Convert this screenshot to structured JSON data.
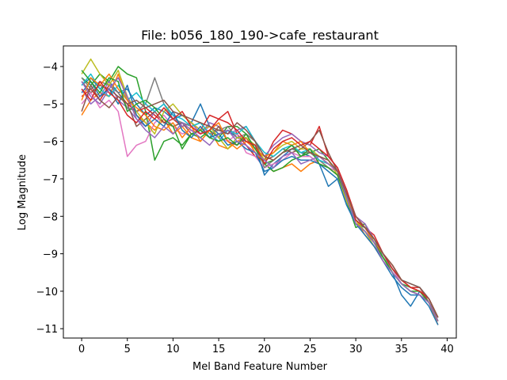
{
  "chart_data": {
    "type": "line",
    "title": "File: b056_180_190->cafe_restaurant",
    "xlabel": "Mel Band Feature Number",
    "ylabel": "Log Magnitude",
    "xlim": [
      -2,
      41
    ],
    "ylim": [
      -11.25,
      -3.45
    ],
    "xticks": [
      0,
      5,
      10,
      15,
      20,
      25,
      30,
      35,
      40
    ],
    "yticks": [
      -11,
      -10,
      -9,
      -8,
      -7,
      -6,
      -5,
      -4
    ],
    "grid": false,
    "legend": "none",
    "colors": [
      "#1f77b4",
      "#ff7f0e",
      "#2ca02c",
      "#d62728",
      "#9467bd",
      "#8c564b",
      "#e377c2",
      "#7f7f7f",
      "#bcbd22",
      "#17becf"
    ],
    "series": [
      {
        "values": [
          -4.5,
          -4.3,
          -4.6,
          -4.4,
          -4.7,
          -4.6,
          -5.0,
          -5.3,
          -5.1,
          -5.2,
          -5.4,
          -5.3,
          -5.5,
          -5.0,
          -5.6,
          -5.8,
          -5.7,
          -5.9,
          -6.0,
          -6.1,
          -6.9,
          -6.6,
          -6.4,
          -6.2,
          -6.3,
          -6.4,
          -6.6,
          -7.2,
          -7.0,
          -7.7,
          -8.2,
          -8.3,
          -8.6,
          -9.1,
          -9.5,
          -10.1,
          -10.4,
          -10.0,
          -10.3,
          -10.8
        ]
      },
      {
        "values": [
          -5.3,
          -4.9,
          -4.7,
          -4.8,
          -4.2,
          -4.9,
          -5.3,
          -5.5,
          -5.7,
          -5.4,
          -5.8,
          -5.6,
          -5.9,
          -6.0,
          -5.7,
          -6.1,
          -6.2,
          -6.0,
          -5.9,
          -6.3,
          -6.6,
          -6.8,
          -6.7,
          -6.6,
          -6.8,
          -6.6,
          -6.5,
          -6.7,
          -6.9,
          -7.6,
          -8.1,
          -8.5,
          -8.8,
          -9.2,
          -9.5,
          -9.8,
          -10.0,
          -10.1,
          -10.3,
          -10.9
        ]
      },
      {
        "values": [
          -4.3,
          -4.5,
          -4.2,
          -4.4,
          -4.0,
          -4.2,
          -4.3,
          -5.2,
          -6.5,
          -6.0,
          -5.9,
          -6.1,
          -5.8,
          -5.9,
          -5.7,
          -5.9,
          -5.6,
          -5.6,
          -5.8,
          -6.0,
          -6.6,
          -6.8,
          -6.7,
          -6.5,
          -6.4,
          -6.3,
          -6.2,
          -6.5,
          -6.8,
          -7.6,
          -8.3,
          -8.2,
          -8.7,
          -9.1,
          -9.5,
          -9.8,
          -9.9,
          -10.0,
          -10.3,
          -10.7
        ]
      },
      {
        "values": [
          -4.8,
          -4.6,
          -4.9,
          -4.5,
          -4.7,
          -5.0,
          -5.2,
          -5.1,
          -5.3,
          -5.5,
          -5.4,
          -5.6,
          -5.5,
          -5.7,
          -5.3,
          -5.4,
          -5.2,
          -5.8,
          -6.1,
          -6.4,
          -6.5,
          -6.0,
          -5.7,
          -5.8,
          -6.0,
          -6.1,
          -5.6,
          -6.4,
          -6.7,
          -7.3,
          -8.0,
          -8.3,
          -8.5,
          -9.0,
          -9.4,
          -9.7,
          -9.9,
          -9.9,
          -10.3,
          -10.8
        ]
      },
      {
        "values": [
          -4.6,
          -5.0,
          -4.8,
          -4.4,
          -4.9,
          -5.1,
          -5.4,
          -5.6,
          -5.2,
          -5.0,
          -5.3,
          -5.6,
          -5.5,
          -5.8,
          -5.5,
          -5.6,
          -5.8,
          -5.7,
          -5.6,
          -6.0,
          -6.4,
          -6.1,
          -5.9,
          -5.8,
          -6.0,
          -6.1,
          -6.3,
          -6.4,
          -6.7,
          -7.4,
          -8.0,
          -8.2,
          -8.6,
          -9.0,
          -9.3,
          -9.7,
          -9.9,
          -10.0,
          -10.2,
          -10.7
        ]
      },
      {
        "values": [
          -4.4,
          -4.7,
          -4.5,
          -4.6,
          -4.8,
          -5.0,
          -5.6,
          -5.4,
          -5.2,
          -5.5,
          -5.6,
          -5.5,
          -5.8,
          -5.7,
          -5.9,
          -5.6,
          -6.0,
          -6.1,
          -5.9,
          -6.2,
          -6.5,
          -6.4,
          -6.2,
          -6.3,
          -6.2,
          -6.0,
          -5.7,
          -6.3,
          -6.8,
          -7.5,
          -8.1,
          -8.3,
          -8.6,
          -9.0,
          -9.4,
          -9.7,
          -9.9,
          -10.0,
          -10.3,
          -10.8
        ]
      },
      {
        "values": [
          -5.0,
          -4.7,
          -5.1,
          -4.9,
          -5.2,
          -6.4,
          -6.1,
          -6.0,
          -5.5,
          -5.3,
          -5.6,
          -5.8,
          -5.7,
          -5.8,
          -5.6,
          -5.9,
          -6.0,
          -5.8,
          -6.3,
          -6.4,
          -6.7,
          -6.6,
          -6.5,
          -6.3,
          -6.4,
          -6.4,
          -6.6,
          -6.7,
          -6.8,
          -7.4,
          -8.0,
          -8.3,
          -8.7,
          -9.1,
          -9.4,
          -9.8,
          -10.0,
          -10.1,
          -10.3,
          -10.8
        ]
      },
      {
        "values": [
          -4.3,
          -4.6,
          -4.4,
          -4.5,
          -4.7,
          -5.1,
          -5.2,
          -5.0,
          -4.3,
          -5.0,
          -5.4,
          -5.5,
          -5.6,
          -5.5,
          -5.8,
          -5.7,
          -5.6,
          -5.9,
          -5.8,
          -6.0,
          -6.7,
          -6.5,
          -6.3,
          -6.2,
          -6.3,
          -6.3,
          -6.5,
          -6.7,
          -6.9,
          -7.5,
          -8.2,
          -8.4,
          -8.7,
          -9.1,
          -9.4,
          -9.7,
          -9.9,
          -10.0,
          -10.3,
          -10.7
        ]
      },
      {
        "values": [
          -4.2,
          -3.8,
          -4.2,
          -4.5,
          -4.1,
          -4.8,
          -5.2,
          -5.5,
          -5.8,
          -5.2,
          -5.0,
          -5.3,
          -5.5,
          -5.7,
          -5.6,
          -5.9,
          -6.2,
          -5.9,
          -5.9,
          -6.1,
          -6.5,
          -6.3,
          -6.1,
          -6.0,
          -6.2,
          -6.2,
          -6.4,
          -6.5,
          -6.9,
          -7.6,
          -8.1,
          -8.4,
          -8.8,
          -9.1,
          -9.5,
          -9.8,
          -10.0,
          -10.1,
          -10.3,
          -10.8
        ]
      },
      {
        "values": [
          -4.5,
          -4.2,
          -4.6,
          -4.8,
          -4.5,
          -4.9,
          -4.7,
          -5.0,
          -5.2,
          -5.0,
          -5.3,
          -5.4,
          -5.6,
          -5.5,
          -5.8,
          -6.0,
          -5.7,
          -5.8,
          -5.6,
          -6.0,
          -6.3,
          -6.4,
          -6.2,
          -6.1,
          -6.3,
          -6.2,
          -6.5,
          -6.6,
          -6.8,
          -7.4,
          -8.1,
          -8.3,
          -8.6,
          -9.0,
          -9.4,
          -9.7,
          -9.8,
          -9.9,
          -10.2,
          -10.7
        ]
      },
      {
        "values": [
          -4.7,
          -4.4,
          -4.8,
          -4.6,
          -5.0,
          -4.5,
          -5.3,
          -5.6,
          -5.4,
          -5.6,
          -5.2,
          -5.7,
          -5.9,
          -5.6,
          -5.9,
          -5.8,
          -6.1,
          -6.0,
          -6.2,
          -6.3,
          -6.8,
          -6.7,
          -6.5,
          -6.4,
          -6.5,
          -6.5,
          -6.6,
          -6.8,
          -7.0,
          -7.7,
          -8.2,
          -8.5,
          -8.8,
          -9.2,
          -9.6,
          -9.9,
          -10.1,
          -10.1,
          -10.4,
          -10.9
        ]
      },
      {
        "values": [
          -4.9,
          -4.3,
          -4.5,
          -4.2,
          -4.6,
          -4.9,
          -5.1,
          -5.3,
          -5.6,
          -5.7,
          -5.5,
          -5.9,
          -5.6,
          -6.0,
          -5.7,
          -5.5,
          -6.0,
          -6.2,
          -6.0,
          -6.2,
          -6.4,
          -6.3,
          -6.0,
          -6.1,
          -6.0,
          -6.3,
          -6.4,
          -6.6,
          -6.8,
          -7.5,
          -8.0,
          -8.3,
          -8.7,
          -9.0,
          -9.3,
          -9.7,
          -9.9,
          -10.0,
          -10.2,
          -10.7
        ]
      },
      {
        "values": [
          -4.1,
          -4.4,
          -4.7,
          -4.3,
          -4.4,
          -5.2,
          -5.0,
          -4.9,
          -5.1,
          -5.4,
          -5.6,
          -6.2,
          -5.8,
          -5.7,
          -5.9,
          -6.0,
          -5.9,
          -6.1,
          -5.8,
          -6.2,
          -6.6,
          -6.5,
          -6.3,
          -6.1,
          -6.4,
          -6.2,
          -6.6,
          -6.7,
          -6.9,
          -7.5,
          -8.2,
          -8.4,
          -8.7,
          -9.1,
          -9.5,
          -9.8,
          -10.0,
          -10.0,
          -10.3,
          -10.8
        ]
      },
      {
        "values": [
          -4.6,
          -4.9,
          -4.4,
          -4.7,
          -4.9,
          -5.3,
          -5.5,
          -5.2,
          -5.4,
          -5.1,
          -5.4,
          -5.2,
          -5.6,
          -5.8,
          -5.7,
          -5.4,
          -5.5,
          -5.7,
          -6.0,
          -6.1,
          -6.6,
          -6.2,
          -6.0,
          -5.9,
          -6.1,
          -6.0,
          -6.2,
          -6.4,
          -6.7,
          -7.3,
          -8.1,
          -8.3,
          -8.6,
          -9.0,
          -9.4,
          -9.7,
          -9.9,
          -10.0,
          -10.2,
          -10.7
        ]
      },
      {
        "values": [
          -4.4,
          -4.8,
          -5.0,
          -4.6,
          -4.3,
          -4.8,
          -5.4,
          -5.7,
          -5.9,
          -5.6,
          -5.8,
          -5.5,
          -5.7,
          -5.9,
          -6.1,
          -5.8,
          -5.7,
          -6.0,
          -6.1,
          -6.3,
          -6.5,
          -6.7,
          -6.4,
          -6.3,
          -6.6,
          -6.5,
          -6.4,
          -6.6,
          -6.8,
          -7.5,
          -8.2,
          -8.4,
          -8.7,
          -9.2,
          -9.5,
          -9.8,
          -10.0,
          -10.1,
          -10.3,
          -10.8
        ]
      },
      {
        "values": [
          -5.2,
          -4.5,
          -4.9,
          -5.1,
          -4.8,
          -5.0,
          -4.9,
          -5.1,
          -5.0,
          -4.9,
          -5.2,
          -5.3,
          -5.4,
          -5.5,
          -5.6,
          -5.7,
          -5.8,
          -5.5,
          -5.7,
          -6.0,
          -6.4,
          -6.5,
          -6.3,
          -6.2,
          -6.1,
          -6.3,
          -6.4,
          -6.5,
          -6.8,
          -7.4,
          -8.0,
          -8.3,
          -8.6,
          -9.0,
          -9.3,
          -9.7,
          -9.8,
          -9.9,
          -10.2,
          -10.7
        ]
      }
    ]
  }
}
